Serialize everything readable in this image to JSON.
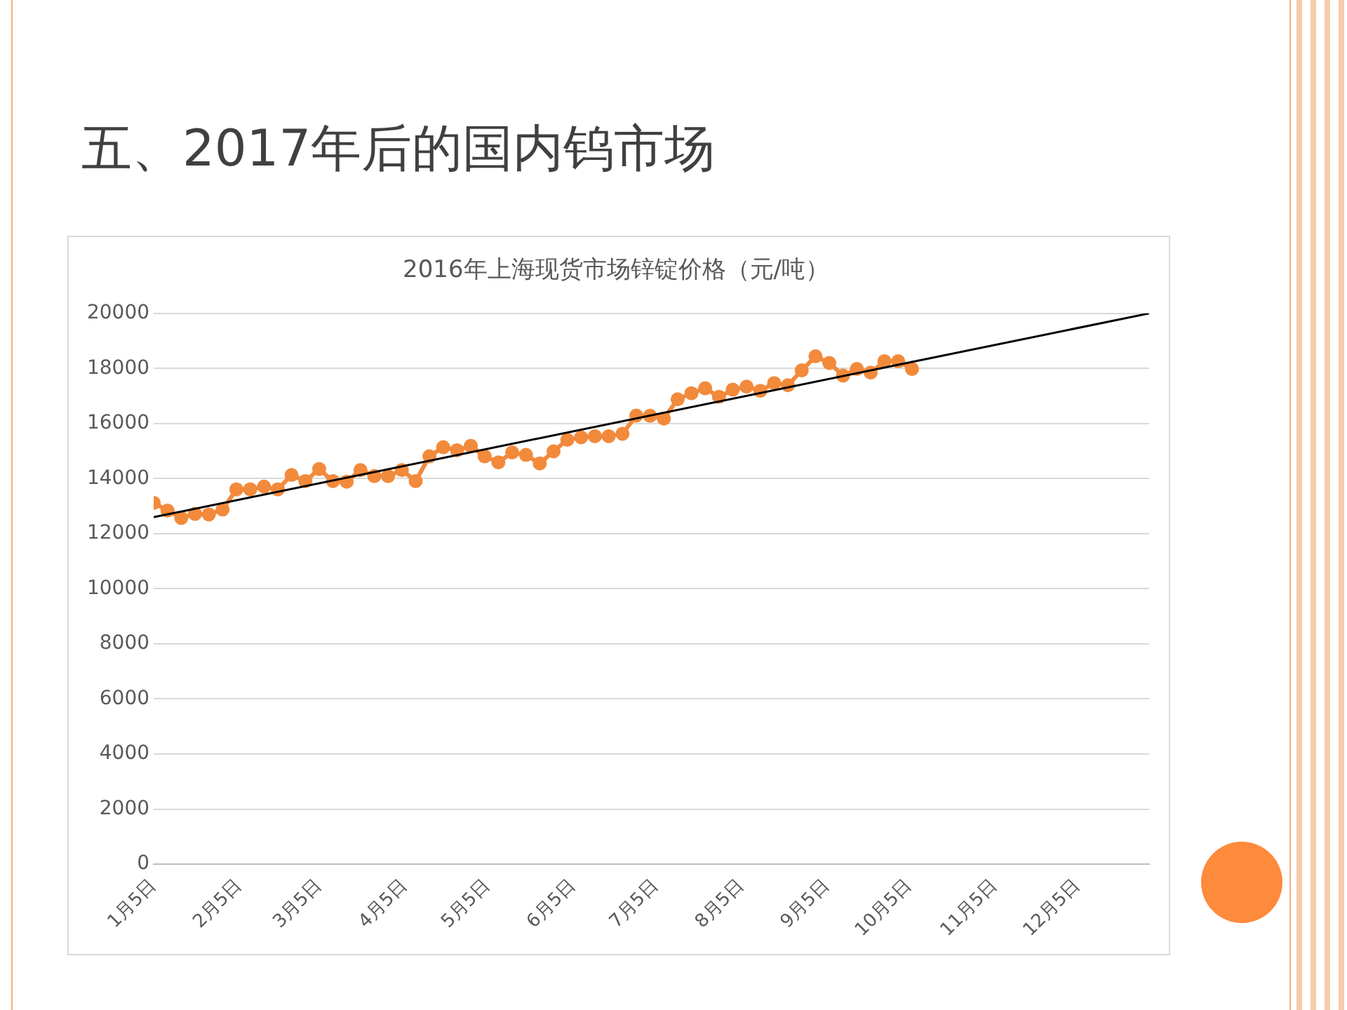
{
  "chart_data": {
    "type": "line",
    "title": "五、2017年后的国内钨市场",
    "subtitle": "2016年上海现货市场锌锭价格（元/吨）",
    "x": [
      "2016-01-05",
      "2016-01-10",
      "2016-01-15",
      "2016-01-20",
      "2016-01-25",
      "2016-01-30",
      "2016-02-04",
      "2016-02-09",
      "2016-02-14",
      "2016-02-19",
      "2016-02-24",
      "2016-02-29",
      "2016-03-05",
      "2016-03-10",
      "2016-03-15",
      "2016-03-20",
      "2016-03-25",
      "2016-03-30",
      "2016-04-04",
      "2016-04-09",
      "2016-04-14",
      "2016-04-19",
      "2016-04-24",
      "2016-04-29",
      "2016-05-04",
      "2016-05-09",
      "2016-05-14",
      "2016-05-19",
      "2016-05-24",
      "2016-05-29",
      "2016-06-03",
      "2016-06-08",
      "2016-06-13",
      "2016-06-18",
      "2016-06-23",
      "2016-06-28",
      "2016-07-03",
      "2016-07-08",
      "2016-07-13",
      "2016-07-18",
      "2016-07-23",
      "2016-07-28",
      "2016-08-02",
      "2016-08-07",
      "2016-08-12",
      "2016-08-17",
      "2016-08-22",
      "2016-08-27",
      "2016-09-01",
      "2016-09-06",
      "2016-09-11",
      "2016-09-16",
      "2016-09-21",
      "2016-09-26",
      "2016-10-01",
      "2016-10-06"
    ],
    "series": [
      {
        "color": "#f28a3c",
        "values": [
          13120,
          12840,
          12570,
          12720,
          12700,
          12880,
          13610,
          13610,
          13710,
          13610,
          14130,
          13910,
          14350,
          13910,
          13890,
          14310,
          14090,
          14090,
          14310,
          13910,
          14810,
          15140,
          15030,
          15190,
          14810,
          14590,
          14950,
          14860,
          14550,
          14990,
          15410,
          15500,
          15540,
          15540,
          15630,
          16290,
          16280,
          16180,
          16880,
          17100,
          17280,
          16970,
          17230,
          17340,
          17190,
          17470,
          17390,
          17930,
          18440,
          18200,
          17740,
          17980,
          17850,
          18260,
          18260,
          17980
        ]
      },
      {
        "type": "line",
        "color": "#000000",
        "marker": "none",
        "x": [
          "2016-01-05",
          "2016-12-31"
        ],
        "values": [
          12600,
          20000
        ]
      }
    ],
    "xlim": [
      "2016-01-05",
      "2016-12-31"
    ],
    "xticks": [
      {
        "value": "2016-01-05",
        "label": "1月5日"
      },
      {
        "value": "2016-02-05",
        "label": "2月5日"
      },
      {
        "value": "2016-03-05",
        "label": "3月5日"
      },
      {
        "value": "2016-04-05",
        "label": "4月5日"
      },
      {
        "value": "2016-05-05",
        "label": "5月5日"
      },
      {
        "value": "2016-06-05",
        "label": "6月5日"
      },
      {
        "value": "2016-07-05",
        "label": "7月5日"
      },
      {
        "value": "2016-08-05",
        "label": "8月5日"
      },
      {
        "value": "2016-09-05",
        "label": "9月5日"
      },
      {
        "value": "2016-10-05",
        "label": "10月5日"
      },
      {
        "value": "2016-11-05",
        "label": "11月5日"
      },
      {
        "value": "2016-12-05",
        "label": "12月5日"
      }
    ],
    "ylim": [
      0,
      20000
    ],
    "yticks": [
      0,
      2000,
      4000,
      6000,
      8000,
      10000,
      12000,
      14000,
      16000,
      18000,
      20000
    ],
    "grid": "y",
    "legend": false,
    "marker": "circle",
    "line_style": "solid"
  }
}
